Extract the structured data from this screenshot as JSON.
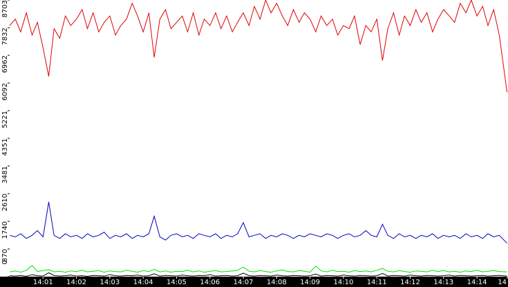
{
  "chart_data": {
    "type": "line",
    "x": [
      0,
      0.17,
      0.33,
      0.5,
      0.67,
      0.83,
      1,
      1.17,
      1.33,
      1.5,
      1.67,
      1.83,
      2,
      2.17,
      2.33,
      2.5,
      2.67,
      2.83,
      3,
      3.17,
      3.33,
      3.5,
      3.67,
      3.83,
      4,
      4.17,
      4.33,
      4.5,
      4.67,
      4.83,
      5,
      5.17,
      5.33,
      5.5,
      5.67,
      5.83,
      6,
      6.17,
      6.33,
      6.5,
      6.67,
      6.83,
      7,
      7.17,
      7.33,
      7.5,
      7.67,
      7.83,
      8,
      8.17,
      8.33,
      8.5,
      8.67,
      8.83,
      9,
      9.17,
      9.33,
      9.5,
      9.67,
      9.83,
      10,
      10.17,
      10.33,
      10.5,
      10.67,
      10.83,
      11,
      11.17,
      11.33,
      11.5,
      11.67,
      11.83,
      12,
      12.17,
      12.33,
      12.5,
      12.67,
      12.83,
      13,
      13.17,
      13.33,
      13.5,
      13.67,
      13.83,
      14,
      14.17,
      14.33,
      14.5,
      14.67,
      14.9
    ],
    "series": [
      {
        "color": "#e00000",
        "values": [
          7900,
          8100,
          7700,
          8300,
          7600,
          8000,
          7200,
          6300,
          7800,
          7500,
          8200,
          7900,
          8100,
          8400,
          7800,
          8300,
          7700,
          8000,
          8200,
          7600,
          7900,
          8100,
          8600,
          8200,
          7700,
          8300,
          6900,
          8100,
          8400,
          7800,
          8000,
          8200,
          7700,
          8300,
          7600,
          8100,
          7900,
          8300,
          7800,
          8200,
          7700,
          8000,
          8300,
          7900,
          8500,
          8100,
          8700,
          8300,
          8600,
          8200,
          7900,
          8400,
          8000,
          8300,
          8100,
          7700,
          8200,
          7900,
          8100,
          7600,
          7900,
          7800,
          8200,
          7300,
          7900,
          7700,
          8100,
          6800,
          7800,
          8300,
          7600,
          8200,
          7900,
          8400,
          8000,
          8300,
          7700,
          8100,
          8400,
          8200,
          8000,
          8600,
          8300,
          8700,
          8200,
          8500,
          7900,
          8400,
          7600,
          5800
        ]
      },
      {
        "color": "#0000c0",
        "values": [
          1300,
          1250,
          1350,
          1200,
          1300,
          1450,
          1250,
          2350,
          1300,
          1200,
          1350,
          1250,
          1300,
          1200,
          1350,
          1250,
          1300,
          1400,
          1200,
          1300,
          1250,
          1350,
          1200,
          1300,
          1250,
          1350,
          1900,
          1250,
          1150,
          1300,
          1350,
          1250,
          1300,
          1200,
          1350,
          1300,
          1250,
          1350,
          1200,
          1300,
          1250,
          1350,
          1700,
          1250,
          1300,
          1350,
          1200,
          1300,
          1250,
          1350,
          1300,
          1200,
          1300,
          1250,
          1350,
          1300,
          1250,
          1350,
          1300,
          1200,
          1300,
          1350,
          1250,
          1300,
          1450,
          1300,
          1250,
          1650,
          1300,
          1200,
          1350,
          1250,
          1300,
          1200,
          1300,
          1250,
          1350,
          1200,
          1300,
          1250,
          1300,
          1200,
          1350,
          1250,
          1300,
          1200,
          1350,
          1250,
          1300,
          1050
        ]
      },
      {
        "color": "#00e000",
        "values": [
          150,
          180,
          140,
          200,
          350,
          160,
          190,
          220,
          150,
          170,
          140,
          180,
          160,
          200,
          150,
          170,
          190,
          140,
          180,
          160,
          150,
          200,
          170,
          140,
          190,
          160,
          230,
          150,
          180,
          140,
          170,
          160,
          200,
          150,
          180,
          140,
          170,
          190,
          150,
          160,
          180,
          200,
          300,
          170,
          150,
          190,
          160,
          140,
          180,
          210,
          160,
          150,
          190,
          170,
          140,
          330,
          180,
          150,
          200,
          160,
          170,
          140,
          190,
          160,
          180,
          150,
          200,
          260,
          170,
          150,
          190,
          160,
          140,
          180,
          170,
          150,
          200,
          160,
          190,
          150,
          170,
          140,
          180,
          160,
          200,
          150,
          170,
          190,
          160,
          150
        ]
      },
      {
        "color": "#000000",
        "values": [
          30,
          20,
          40,
          10,
          60,
          30,
          20,
          120,
          40,
          20,
          30,
          50,
          20,
          30,
          10,
          40,
          30,
          20,
          60,
          30,
          20,
          40,
          30,
          50,
          20,
          30,
          90,
          20,
          40,
          30,
          20,
          50,
          30,
          20,
          40,
          30,
          60,
          20,
          30,
          40,
          20,
          30,
          110,
          30,
          20,
          40,
          30,
          20,
          50,
          30,
          20,
          40,
          30,
          20,
          30,
          80,
          20,
          40,
          30,
          20,
          50,
          30,
          20,
          40,
          30,
          20,
          30,
          100,
          20,
          40,
          30,
          20,
          50,
          30,
          20,
          40,
          30,
          20,
          30,
          50,
          20,
          40,
          30,
          20,
          30,
          40,
          20,
          30,
          40,
          20
        ]
      }
    ],
    "xlim": [
      0,
      14.93
    ],
    "xticks": [
      {
        "value": 1,
        "label": "14:01"
      },
      {
        "value": 2,
        "label": "14:02"
      },
      {
        "value": 3,
        "label": "14:03"
      },
      {
        "value": 4,
        "label": "14:04"
      },
      {
        "value": 5,
        "label": "14:05"
      },
      {
        "value": 6,
        "label": "14:06"
      },
      {
        "value": 7,
        "label": "14:07"
      },
      {
        "value": 8,
        "label": "14:08"
      },
      {
        "value": 9,
        "label": "14:09"
      },
      {
        "value": 10,
        "label": "14:10"
      },
      {
        "value": 11,
        "label": "14:11"
      },
      {
        "value": 12,
        "label": "14:12"
      },
      {
        "value": 13,
        "label": "14:13"
      },
      {
        "value": 14,
        "label": "14:14"
      },
      {
        "value": 15,
        "label": "14"
      }
    ],
    "ylim": [
      0,
      8703
    ],
    "yticks": [
      0,
      870,
      1740,
      2610,
      3481,
      4351,
      5221,
      6092,
      6962,
      7832,
      8703
    ]
  }
}
